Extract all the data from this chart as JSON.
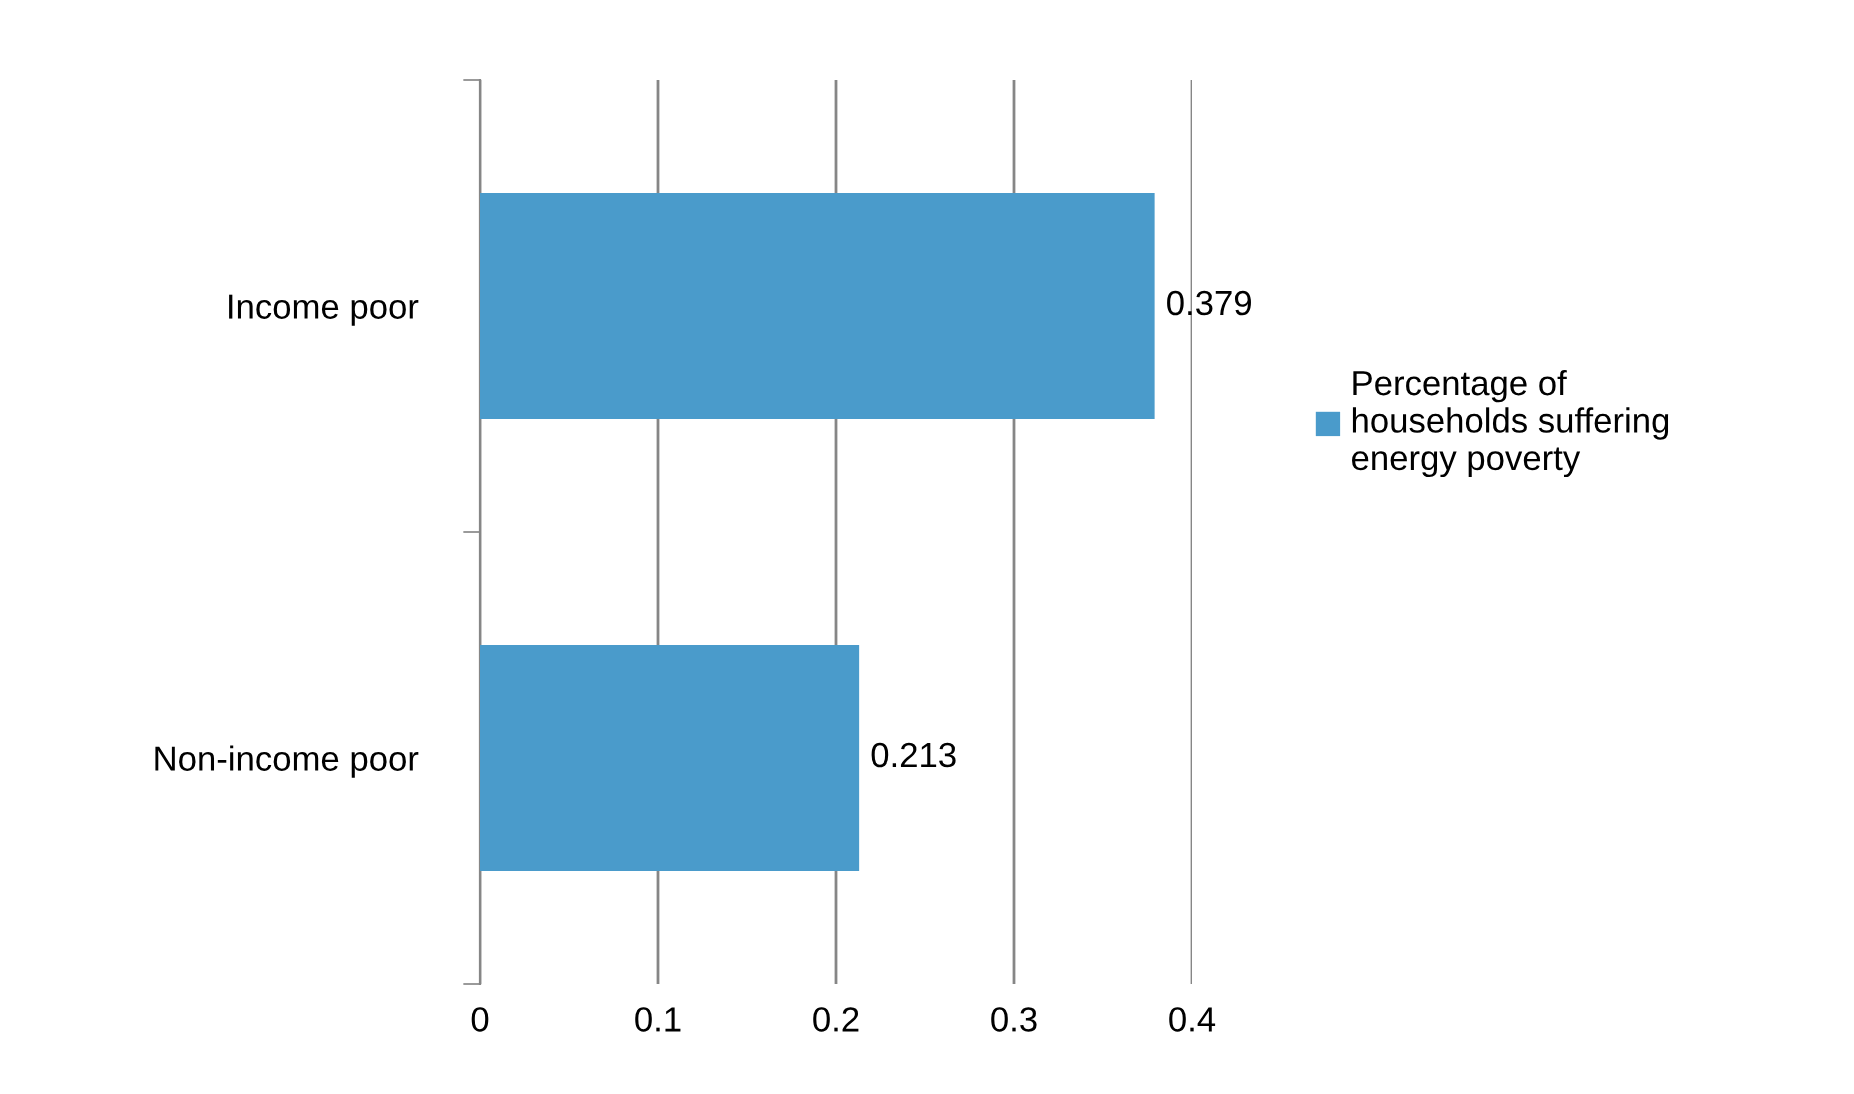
{
  "chart_data": {
    "type": "bar",
    "orientation": "horizontal",
    "categories": [
      "Income poor",
      "Non-income poor"
    ],
    "series": [
      {
        "name": "Percentage of households suffering energy poverty",
        "color": "#4a9bcb",
        "values": [
          0.379,
          0.213
        ]
      }
    ],
    "xlim": [
      0,
      0.4
    ],
    "xticks": [
      0,
      0.1,
      0.2,
      0.3,
      0.4
    ],
    "grid": "x",
    "legend": "right",
    "data_labels": true
  }
}
